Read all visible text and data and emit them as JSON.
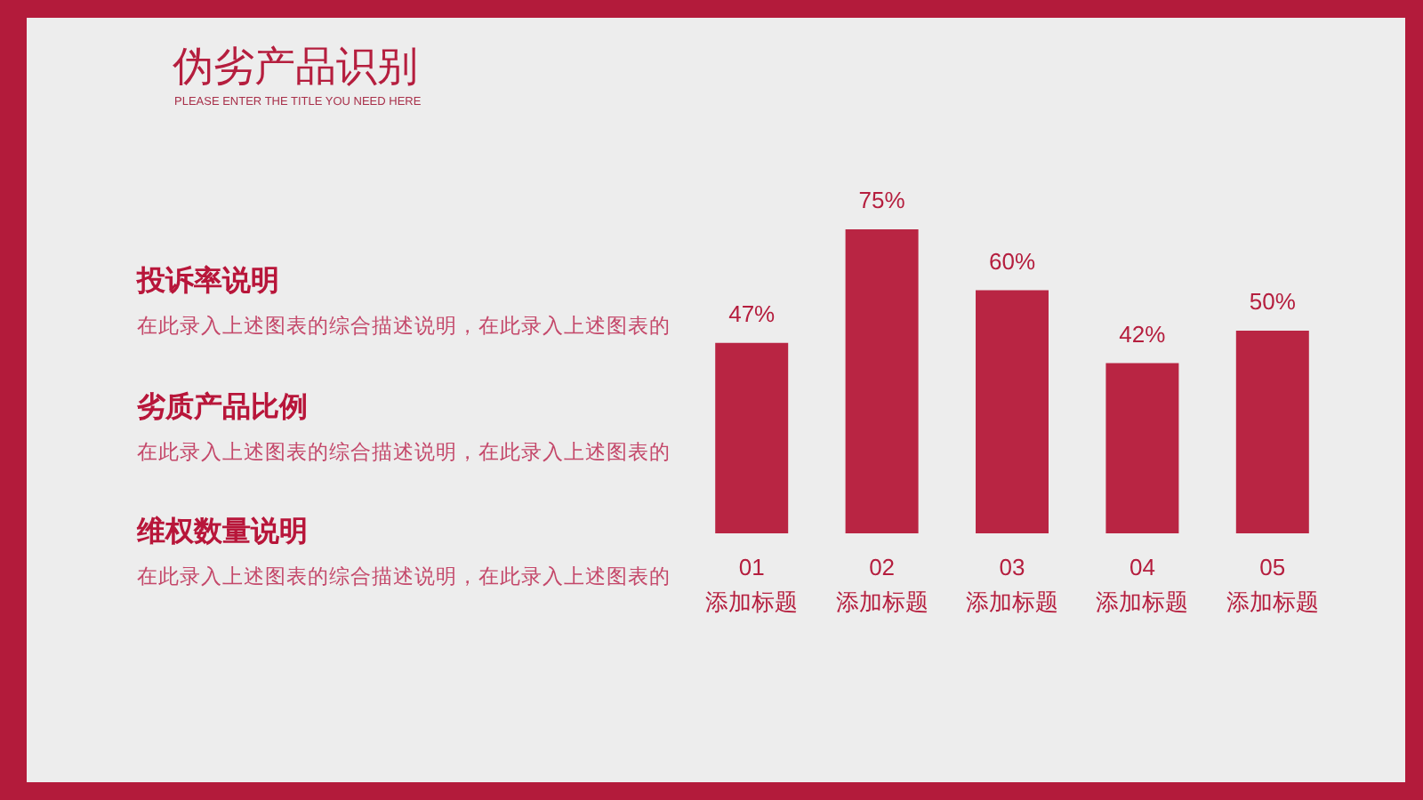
{
  "chart_data": {
    "type": "bar",
    "title": "伪劣产品识别",
    "subtitle": "PLEASE ENTER THE TITLE YOU NEED HERE",
    "categories": [
      "01\n添加标题",
      "02\n添加标题",
      "03\n添加标题",
      "04\n添加标题",
      "05\n添加标题"
    ],
    "values": [
      47,
      75,
      60,
      42,
      50
    ],
    "color": "#b92543",
    "value_labels": [
      "47%",
      "75%",
      "60%",
      "42%",
      "50%"
    ],
    "annotations": [
      "投诉率说明",
      "在此录入上述图表的综合描述说明，在此录入上述图表的",
      "劣质产品比例",
      "在此录入上述图表的综合描述说明，在此录入上述图表的",
      "维权数量说明",
      "在此录入上述图表的综合描述说明，在此录入上述图表的"
    ]
  }
}
